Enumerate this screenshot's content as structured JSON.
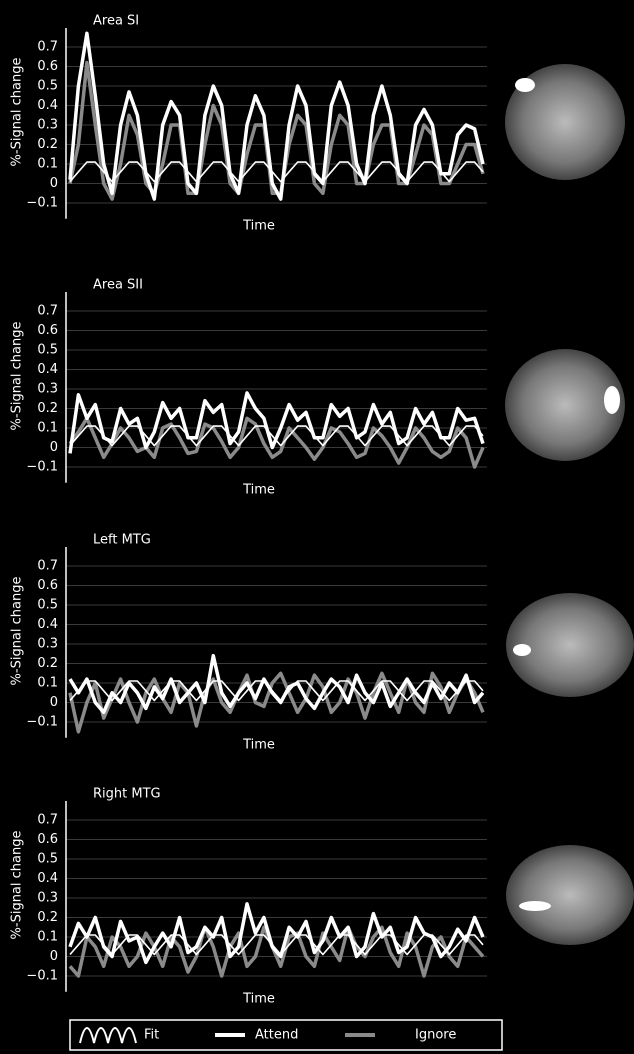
{
  "chart_data": [
    {
      "type": "line",
      "title": "Area SI",
      "y_label": "%-Signal change",
      "x_label": "Time",
      "ylim": [
        -0.15,
        0.78
      ],
      "yticks": [
        {
          "value": -0.1,
          "label": "−0.1"
        },
        0,
        0.1,
        0.2,
        0.3,
        0.4,
        0.5,
        0.6,
        0.7
      ],
      "grid": true,
      "series": [
        {
          "name": "Fit",
          "color": "#ffffff",
          "values": [
            0.01,
            0.06,
            0.11,
            0.11,
            0.06,
            0.01,
            0.06,
            0.11,
            0.11,
            0.06,
            0.01,
            0.06,
            0.11,
            0.11,
            0.06,
            0.01,
            0.06,
            0.11,
            0.11,
            0.06,
            0.01,
            0.06,
            0.11,
            0.11,
            0.06,
            0.01,
            0.06,
            0.11,
            0.11,
            0.06,
            0.01,
            0.06,
            0.11,
            0.11,
            0.06,
            0.01,
            0.06,
            0.11,
            0.11,
            0.06,
            0.01,
            0.06,
            0.11,
            0.11,
            0.06,
            0.01,
            0.06,
            0.11,
            0.11,
            0.06
          ]
        },
        {
          "name": "Attend",
          "color": "#ffffff",
          "values": [
            0.02,
            0.5,
            0.77,
            0.45,
            0.1,
            -0.05,
            0.3,
            0.47,
            0.35,
            0.05,
            -0.08,
            0.3,
            0.42,
            0.35,
            0.0,
            -0.05,
            0.35,
            0.5,
            0.4,
            0.05,
            -0.05,
            0.3,
            0.45,
            0.35,
            0.0,
            -0.08,
            0.3,
            0.5,
            0.4,
            0.05,
            0.0,
            0.4,
            0.52,
            0.4,
            0.1,
            0.0,
            0.35,
            0.5,
            0.35,
            0.05,
            0.0,
            0.3,
            0.38,
            0.3,
            0.05,
            0.05,
            0.25,
            0.3,
            0.28,
            0.1
          ]
        },
        {
          "name": "Ignore",
          "color": "#8a8a8a",
          "values": [
            0.0,
            0.2,
            0.62,
            0.3,
            0.0,
            -0.08,
            0.1,
            0.35,
            0.25,
            0.0,
            -0.05,
            0.1,
            0.3,
            0.3,
            -0.05,
            -0.05,
            0.2,
            0.4,
            0.3,
            0.0,
            -0.05,
            0.15,
            0.3,
            0.3,
            -0.05,
            -0.05,
            0.2,
            0.35,
            0.3,
            0.0,
            -0.05,
            0.2,
            0.35,
            0.3,
            0.0,
            0.0,
            0.2,
            0.3,
            0.3,
            0.0,
            0.0,
            0.15,
            0.3,
            0.25,
            0.0,
            0.0,
            0.1,
            0.2,
            0.2,
            0.05
          ]
        }
      ]
    },
    {
      "type": "line",
      "title": "Area SII",
      "y_label": "%-Signal change",
      "x_label": "Time",
      "ylim": [
        -0.15,
        0.78
      ],
      "yticks": [
        {
          "value": -0.1,
          "label": "−0.1"
        },
        0,
        0.1,
        0.2,
        0.3,
        0.4,
        0.5,
        0.6,
        0.7
      ],
      "grid": true,
      "series": [
        {
          "color": "#ffffff",
          "values": [
            0.01,
            0.06,
            0.11,
            0.11,
            0.06,
            0.01,
            0.06,
            0.11,
            0.11,
            0.06,
            0.01,
            0.06,
            0.11,
            0.11,
            0.06,
            0.01,
            0.06,
            0.11,
            0.11,
            0.06,
            0.01,
            0.06,
            0.11,
            0.11,
            0.06,
            0.01,
            0.06,
            0.11,
            0.11,
            0.06,
            0.01,
            0.06,
            0.11,
            0.11,
            0.06,
            0.01,
            0.06,
            0.11,
            0.11,
            0.06,
            0.01,
            0.06,
            0.11,
            0.11,
            0.06,
            0.01,
            0.06,
            0.11,
            0.11,
            0.06
          ]
        },
        {
          "color": "#ffffff",
          "values": [
            -0.03,
            0.27,
            0.15,
            0.22,
            0.05,
            0.03,
            0.2,
            0.12,
            0.15,
            0.0,
            0.08,
            0.23,
            0.15,
            0.2,
            0.05,
            0.05,
            0.24,
            0.18,
            0.22,
            0.02,
            0.08,
            0.28,
            0.2,
            0.15,
            0.0,
            0.1,
            0.22,
            0.14,
            0.18,
            0.05,
            0.05,
            0.22,
            0.16,
            0.2,
            0.05,
            0.08,
            0.22,
            0.12,
            0.18,
            0.02,
            0.05,
            0.2,
            0.12,
            0.18,
            0.05,
            0.05,
            0.2,
            0.14,
            0.15,
            0.02
          ]
        },
        {
          "color": "#8a8a8a",
          "values": [
            0.02,
            0.08,
            0.15,
            0.05,
            -0.05,
            0.02,
            0.1,
            0.05,
            -0.02,
            0.0,
            -0.05,
            0.1,
            0.12,
            0.05,
            -0.03,
            -0.02,
            0.12,
            0.1,
            0.03,
            -0.05,
            0.0,
            0.15,
            0.12,
            0.02,
            -0.05,
            -0.02,
            0.1,
            0.05,
            0.0,
            -0.06,
            0.0,
            0.1,
            0.08,
            0.02,
            -0.05,
            -0.03,
            0.1,
            0.06,
            0.0,
            -0.08,
            0.0,
            0.1,
            0.05,
            -0.02,
            -0.05,
            -0.02,
            0.1,
            0.05,
            -0.1,
            0.0
          ]
        }
      ]
    },
    {
      "type": "line",
      "title": "Left MTG",
      "y_label": "%-Signal change",
      "x_label": "Time",
      "ylim": [
        -0.15,
        0.78
      ],
      "yticks": [
        {
          "value": -0.1,
          "label": "−0.1"
        },
        0,
        0.1,
        0.2,
        0.3,
        0.4,
        0.5,
        0.6,
        0.7
      ],
      "grid": true,
      "series": [
        {
          "color": "#ffffff",
          "values": [
            0.01,
            0.06,
            0.11,
            0.11,
            0.06,
            0.01,
            0.06,
            0.11,
            0.11,
            0.06,
            0.01,
            0.06,
            0.11,
            0.11,
            0.06,
            0.01,
            0.06,
            0.11,
            0.11,
            0.06,
            0.01,
            0.06,
            0.11,
            0.11,
            0.06,
            0.01,
            0.06,
            0.11,
            0.11,
            0.06,
            0.01,
            0.06,
            0.11,
            0.11,
            0.06,
            0.01,
            0.06,
            0.11,
            0.11,
            0.06,
            0.01,
            0.06,
            0.11,
            0.11,
            0.06,
            0.01,
            0.06,
            0.11,
            0.11,
            0.06
          ]
        },
        {
          "color": "#ffffff",
          "values": [
            0.12,
            0.05,
            0.12,
            0.0,
            -0.05,
            0.05,
            0.0,
            0.1,
            0.05,
            -0.03,
            0.08,
            0.02,
            0.12,
            0.0,
            0.05,
            0.1,
            0.0,
            0.24,
            0.05,
            -0.02,
            0.05,
            0.1,
            0.02,
            0.12,
            0.05,
            0.0,
            0.08,
            0.1,
            0.02,
            -0.03,
            0.05,
            0.12,
            0.08,
            0.0,
            0.14,
            0.05,
            0.0,
            0.1,
            -0.02,
            0.05,
            0.12,
            0.05,
            0.0,
            0.1,
            0.02,
            0.1,
            0.05,
            0.14,
            0.0,
            0.05
          ]
        },
        {
          "color": "#8a8a8a",
          "values": [
            0.05,
            -0.15,
            0.0,
            0.1,
            -0.08,
            0.02,
            0.12,
            0.0,
            -0.1,
            0.05,
            0.12,
            0.02,
            -0.05,
            0.1,
            0.05,
            -0.12,
            0.05,
            0.12,
            0.0,
            -0.05,
            0.05,
            0.14,
            0.0,
            -0.02,
            0.1,
            0.15,
            0.05,
            -0.05,
            0.02,
            0.14,
            0.08,
            -0.05,
            0.0,
            0.12,
            0.05,
            -0.08,
            0.05,
            0.15,
            0.05,
            -0.05,
            0.12,
            0.0,
            -0.05,
            0.15,
            0.08,
            -0.05,
            0.05,
            0.12,
            0.05,
            -0.05
          ]
        }
      ]
    },
    {
      "type": "line",
      "title": "Right MTG",
      "y_label": "%-Signal change",
      "x_label": "Time",
      "ylim": [
        -0.15,
        0.78
      ],
      "yticks": [
        {
          "value": -0.1,
          "label": "−0.1"
        },
        0,
        0.1,
        0.2,
        0.3,
        0.4,
        0.5,
        0.6,
        0.7
      ],
      "grid": true,
      "series": [
        {
          "color": "#ffffff",
          "values": [
            0.01,
            0.06,
            0.11,
            0.11,
            0.06,
            0.01,
            0.06,
            0.11,
            0.11,
            0.06,
            0.01,
            0.06,
            0.11,
            0.11,
            0.06,
            0.01,
            0.06,
            0.11,
            0.11,
            0.06,
            0.01,
            0.06,
            0.11,
            0.11,
            0.06,
            0.01,
            0.06,
            0.11,
            0.11,
            0.06,
            0.01,
            0.06,
            0.11,
            0.11,
            0.06,
            0.01,
            0.06,
            0.11,
            0.11,
            0.06,
            0.01,
            0.06,
            0.11,
            0.11,
            0.06,
            0.01,
            0.06,
            0.11,
            0.11,
            0.06
          ]
        },
        {
          "color": "#ffffff",
          "values": [
            0.05,
            0.17,
            0.1,
            0.2,
            0.05,
            0.0,
            0.18,
            0.08,
            0.1,
            -0.03,
            0.05,
            0.12,
            0.05,
            0.2,
            0.02,
            0.05,
            0.15,
            0.1,
            0.2,
            0.0,
            0.05,
            0.27,
            0.12,
            0.2,
            0.05,
            0.0,
            0.15,
            0.1,
            0.18,
            0.02,
            0.08,
            0.2,
            0.1,
            0.15,
            0.0,
            0.05,
            0.22,
            0.1,
            0.15,
            0.02,
            0.05,
            0.2,
            0.12,
            0.1,
            0.0,
            0.05,
            0.14,
            0.08,
            0.2,
            0.1
          ]
        },
        {
          "color": "#8a8a8a",
          "values": [
            -0.05,
            -0.1,
            0.1,
            0.05,
            -0.05,
            0.1,
            0.05,
            -0.05,
            0.0,
            0.12,
            0.05,
            -0.05,
            0.1,
            0.05,
            -0.08,
            0.0,
            0.15,
            0.05,
            -0.1,
            0.05,
            0.12,
            -0.05,
            0.0,
            0.15,
            0.05,
            -0.05,
            0.1,
            0.12,
            0.0,
            -0.05,
            0.12,
            0.05,
            -0.02,
            0.15,
            0.05,
            0.0,
            0.1,
            0.15,
            0.02,
            -0.05,
            0.12,
            0.05,
            -0.1,
            0.05,
            0.1,
            0.0,
            -0.05,
            0.1,
            0.05,
            0.0
          ]
        }
      ]
    }
  ]
}
